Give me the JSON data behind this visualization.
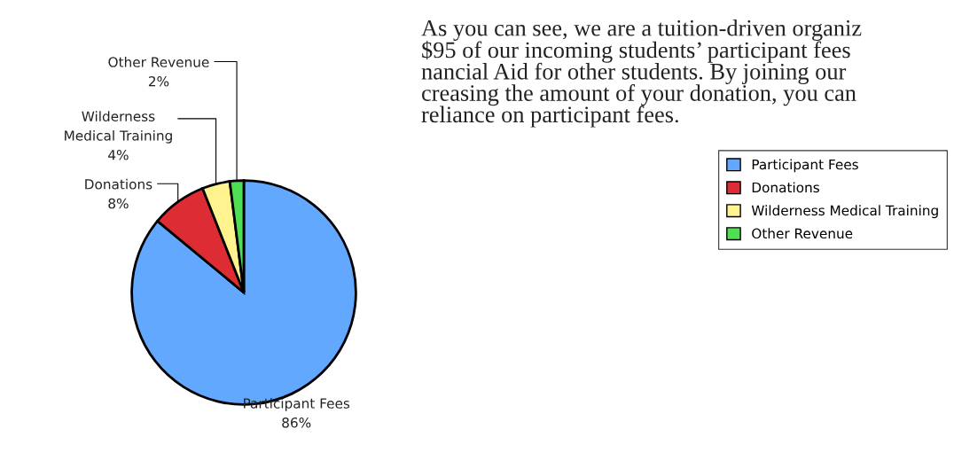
{
  "chart_data": {
    "type": "pie",
    "categories": [
      "Participant Fees",
      "Donations",
      "Wilderness Medical Training",
      "Other Revenue"
    ],
    "values": [
      86,
      8,
      4,
      2
    ],
    "colors": [
      "#62a8ff",
      "#de2c34",
      "#fff38f",
      "#4fdf55"
    ],
    "value_labels": [
      "86%",
      "8%",
      "4%",
      "2%"
    ],
    "legend": "right",
    "annotations": [
      "As you can see, we are a tuition-driven organiz\n$95 of our incoming students’ participant fees\nnancial Aid for other students. By joining our\ncreasing the amount of your donation, you can\nreliance on participant fees."
    ]
  }
}
